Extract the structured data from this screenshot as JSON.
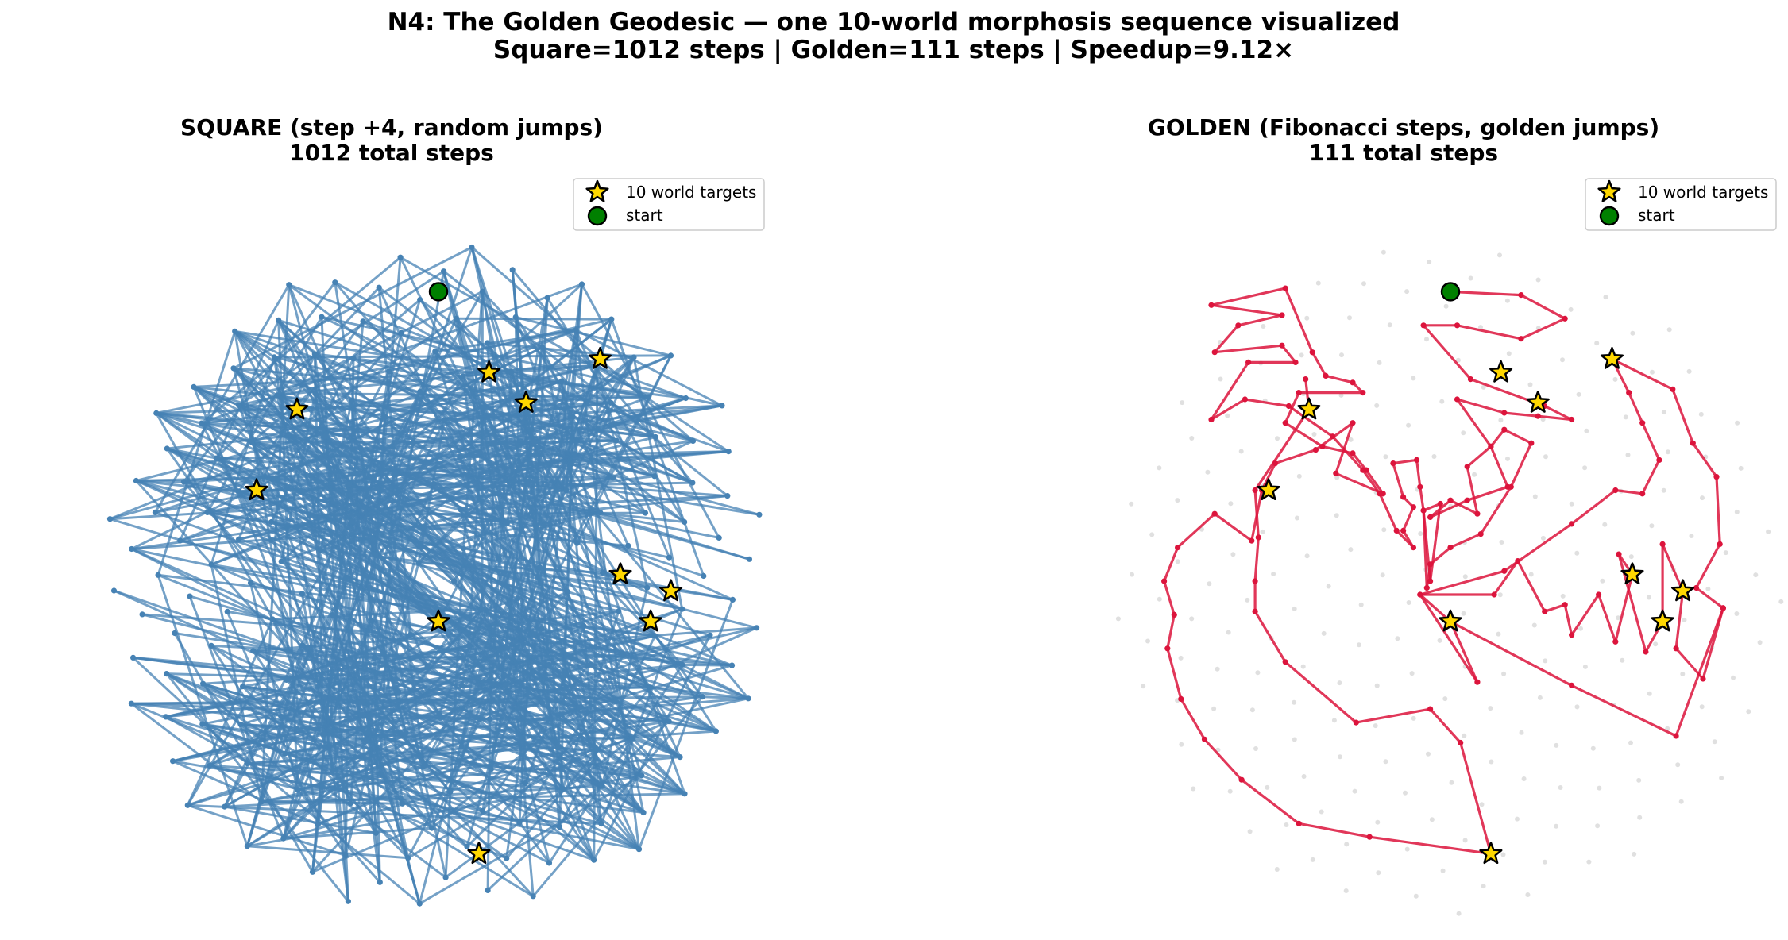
{
  "figure": {
    "title_line1": "N4: The Golden Geodesic — one 10-world morphosis sequence visualized",
    "title_line2": "Square=1012 steps  |  Golden=111 steps  |  Speedup=9.12×"
  },
  "legend": {
    "targets_label": "10 world targets",
    "start_label": "start"
  },
  "colors": {
    "square_path": "#4682b4",
    "golden_path": "#dc143c",
    "background_points": "#d3d3d3",
    "target_star": "#ffd700",
    "start_marker": "#008000"
  },
  "chart_data": [
    {
      "type": "line",
      "panel": "square",
      "title_line1": "SQUARE (step +4, random jumps)",
      "title_line2": "1012 total steps",
      "xlim": [
        -1.08,
        1.08
      ],
      "ylim": [
        -1.08,
        1.08
      ],
      "axes": "off",
      "grid": false,
      "legend_position": "top-right",
      "lattice_points": 233,
      "step_increment": 4,
      "total_steps": 1012,
      "targets": [
        [
          0.48,
          0.66
        ],
        [
          0.15,
          0.62
        ],
        [
          -0.42,
          0.51
        ],
        [
          0.26,
          0.53
        ],
        [
          -0.54,
          0.27
        ],
        [
          0.69,
          -0.03
        ],
        [
          0.54,
          0.02
        ],
        [
          0.63,
          -0.12
        ],
        [
          0.0,
          -0.12
        ],
        [
          0.12,
          -0.81
        ]
      ],
      "start": [
        0.0,
        0.86
      ]
    },
    {
      "type": "line",
      "panel": "golden",
      "title_line1": "GOLDEN (Fibonacci steps, golden jumps)",
      "title_line2": "111 total steps",
      "xlim": [
        -1.08,
        1.08
      ],
      "ylim": [
        -1.08,
        1.08
      ],
      "axes": "off",
      "grid": false,
      "legend_position": "top-right",
      "total_steps": 111,
      "path": [
        [
          0.0,
          0.86
        ],
        [
          0.21,
          0.85
        ],
        [
          0.34,
          0.78
        ],
        [
          0.21,
          0.72
        ],
        [
          0.02,
          0.76
        ],
        [
          -0.08,
          0.76
        ],
        [
          0.06,
          0.6
        ],
        [
          0.28,
          0.52
        ],
        [
          0.36,
          0.48
        ],
        [
          0.26,
          0.49
        ],
        [
          0.16,
          0.5
        ],
        [
          0.02,
          0.54
        ],
        [
          0.12,
          0.4
        ],
        [
          0.17,
          0.28
        ],
        [
          0.05,
          0.24
        ],
        [
          -0.06,
          0.19
        ],
        [
          0.0,
          0.24
        ],
        [
          0.08,
          0.2
        ],
        [
          0.05,
          0.34
        ],
        [
          0.12,
          0.4
        ],
        [
          0.16,
          0.45
        ],
        [
          0.24,
          0.41
        ],
        [
          0.18,
          0.28
        ],
        [
          0.09,
          0.14
        ],
        [
          0.0,
          0.1
        ],
        [
          -0.06,
          0.05
        ],
        [
          -0.07,
          -0.02
        ],
        [
          -0.08,
          0.21
        ],
        [
          -0.03,
          0.23
        ],
        [
          -0.06,
          0.0
        ],
        [
          -0.08,
          0.21
        ],
        [
          -0.09,
          0.28
        ],
        [
          -0.1,
          0.36
        ],
        [
          -0.17,
          0.35
        ],
        [
          -0.14,
          0.25
        ],
        [
          -0.11,
          0.22
        ],
        [
          -0.14,
          0.15
        ],
        [
          -0.11,
          0.1
        ],
        [
          -0.16,
          0.15
        ],
        [
          -0.21,
          0.26
        ],
        [
          -0.26,
          0.33
        ],
        [
          -0.35,
          0.43
        ],
        [
          -0.48,
          0.52
        ],
        [
          -0.61,
          0.54
        ],
        [
          -0.71,
          0.48
        ],
        [
          -0.6,
          0.65
        ],
        [
          -0.46,
          0.65
        ],
        [
          -0.5,
          0.7
        ],
        [
          -0.7,
          0.68
        ],
        [
          -0.63,
          0.76
        ],
        [
          -0.5,
          0.79
        ],
        [
          -0.71,
          0.82
        ],
        [
          -0.49,
          0.87
        ],
        [
          -0.41,
          0.68
        ],
        [
          -0.37,
          0.61
        ],
        [
          -0.29,
          0.59
        ],
        [
          -0.26,
          0.56
        ],
        [
          -0.45,
          0.56
        ],
        [
          -0.49,
          0.47
        ],
        [
          -0.38,
          0.4
        ],
        [
          -0.29,
          0.38
        ],
        [
          -0.25,
          0.33
        ],
        [
          -0.2,
          0.26
        ],
        [
          -0.34,
          0.32
        ],
        [
          -0.29,
          0.47
        ],
        [
          -0.4,
          0.39
        ],
        [
          -0.52,
          0.35
        ],
        [
          -0.56,
          0.27
        ],
        [
          -0.59,
          0.12
        ],
        [
          -0.7,
          0.2
        ],
        [
          -0.81,
          0.1
        ],
        [
          -0.85,
          0.0
        ],
        [
          -0.82,
          -0.1
        ],
        [
          -0.84,
          -0.2
        ],
        [
          -0.8,
          -0.35
        ],
        [
          -0.73,
          -0.47
        ],
        [
          -0.62,
          -0.59
        ],
        [
          -0.45,
          -0.72
        ],
        [
          -0.24,
          -0.76
        ],
        [
          0.12,
          -0.81
        ],
        [
          0.03,
          -0.48
        ],
        [
          -0.06,
          -0.38
        ],
        [
          -0.28,
          -0.42
        ],
        [
          -0.49,
          -0.24
        ],
        [
          -0.58,
          -0.09
        ],
        [
          -0.58,
          0.0
        ],
        [
          -0.57,
          0.13
        ],
        [
          -0.58,
          0.27
        ],
        [
          -0.42,
          0.51
        ],
        [
          -0.43,
          0.6
        ]
      ],
      "path2": [
        [
          0.0,
          -0.12
        ],
        [
          0.08,
          -0.3
        ],
        [
          -0.09,
          -0.04
        ],
        [
          0.13,
          -0.04
        ],
        [
          0.2,
          0.06
        ],
        [
          0.28,
          -0.09
        ],
        [
          0.34,
          -0.07
        ],
        [
          0.36,
          -0.16
        ],
        [
          0.44,
          -0.04
        ],
        [
          0.49,
          -0.18
        ],
        [
          0.54,
          0.02
        ],
        [
          0.5,
          0.08
        ],
        [
          0.58,
          -0.21
        ],
        [
          0.63,
          -0.12
        ],
        [
          0.63,
          0.11
        ],
        [
          0.69,
          -0.03
        ],
        [
          0.67,
          -0.2
        ],
        [
          0.75,
          -0.29
        ],
        [
          0.81,
          -0.08
        ],
        [
          0.73,
          -0.02
        ],
        [
          0.8,
          0.11
        ],
        [
          0.79,
          0.31
        ],
        [
          0.72,
          0.41
        ],
        [
          0.66,
          0.57
        ],
        [
          0.48,
          0.66
        ],
        [
          0.53,
          0.56
        ],
        [
          0.57,
          0.47
        ],
        [
          0.62,
          0.36
        ],
        [
          0.57,
          0.26
        ],
        [
          0.49,
          0.27
        ],
        [
          0.36,
          0.17
        ],
        [
          0.16,
          0.03
        ],
        [
          -0.09,
          -0.04
        ],
        [
          0.0,
          -0.12
        ],
        [
          0.36,
          -0.31
        ],
        [
          0.67,
          -0.46
        ],
        [
          0.81,
          -0.08
        ]
      ],
      "targets": [
        [
          0.48,
          0.66
        ],
        [
          0.15,
          0.62
        ],
        [
          -0.42,
          0.51
        ],
        [
          0.26,
          0.53
        ],
        [
          -0.54,
          0.27
        ],
        [
          0.69,
          -0.03
        ],
        [
          0.54,
          0.02
        ],
        [
          0.63,
          -0.12
        ],
        [
          0.0,
          -0.12
        ],
        [
          0.12,
          -0.81
        ]
      ],
      "start": [
        0.0,
        0.86
      ]
    }
  ]
}
